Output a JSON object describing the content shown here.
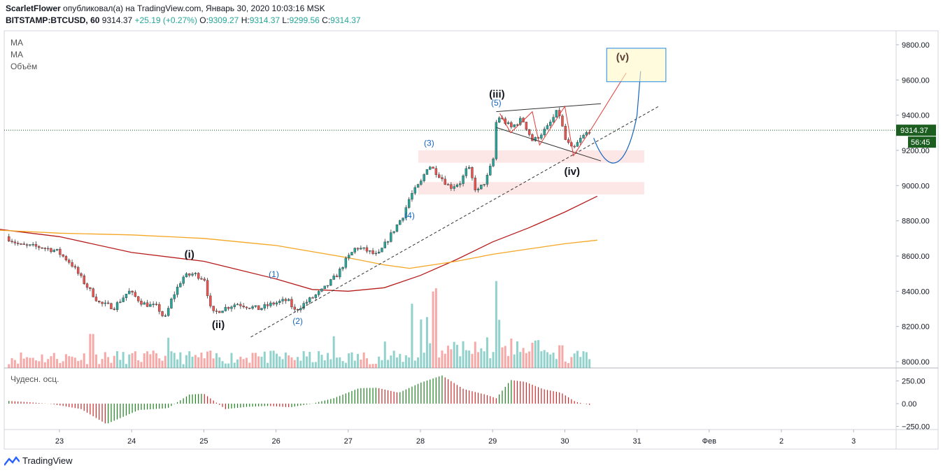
{
  "header": {
    "author": "ScarletFlower",
    "published": "опубликовал(а) на TradingView.com, Январь 30, 2020 10:03:16 MSK",
    "symbol": "BITSTAMP:BTCUSD, 60",
    "last": "9314.37",
    "change": "+25.19 (+0.27%)",
    "o_label": "O:",
    "o": "9309.27",
    "h_label": "H:",
    "h": "9314.37",
    "l_label": "L:",
    "l": "9299.56",
    "c_label": "C:",
    "c": "9314.37"
  },
  "legend": {
    "ma1": "MA",
    "ma2": "MA",
    "volume": "Объём"
  },
  "osc_legend": "Чудесн. осц.",
  "footer": {
    "brand": "TradingView"
  },
  "colors": {
    "up": "#26a69a",
    "down": "#ef5350",
    "ma_slow": "#b71c1c",
    "ma_fast": "#f5a623",
    "wave": "#1565c0",
    "price_line": "#1b5e20"
  },
  "chart_data": {
    "type": "candlestick",
    "interval": "60",
    "ylim": [
      7960,
      9880
    ],
    "y_ticks": [
      "9800.00",
      "9600.00",
      "9400.00",
      "9200.00",
      "9000.00",
      "8800.00",
      "8600.00",
      "8400.00",
      "8200.00",
      "8000.00"
    ],
    "x_labels": [
      "23",
      "24",
      "25",
      "26",
      "27",
      "28",
      "29",
      "30",
      "31",
      "Фев",
      "2",
      "3"
    ],
    "x_label_pos": [
      23,
      24,
      25,
      26,
      27,
      28,
      29,
      30,
      31,
      32,
      33,
      34
    ],
    "current_price": "9314.37",
    "countdown": "56:45",
    "price_path": [
      [
        22.3,
        8710
      ],
      [
        22.5,
        8660
      ],
      [
        22.8,
        8650
      ],
      [
        23.0,
        8630
      ],
      [
        23.2,
        8560
      ],
      [
        23.4,
        8440
      ],
      [
        23.6,
        8330
      ],
      [
        23.8,
        8310
      ],
      [
        24.0,
        8400
      ],
      [
        24.2,
        8330
      ],
      [
        24.4,
        8310
      ],
      [
        24.5,
        8240
      ],
      [
        24.6,
        8360
      ],
      [
        24.75,
        8480
      ],
      [
        24.9,
        8500
      ],
      [
        25.05,
        8470
      ],
      [
        25.15,
        8270
      ],
      [
        25.3,
        8300
      ],
      [
        25.5,
        8330
      ],
      [
        25.8,
        8300
      ],
      [
        26.0,
        8330
      ],
      [
        26.2,
        8350
      ],
      [
        26.3,
        8290
      ],
      [
        26.5,
        8350
      ],
      [
        26.7,
        8410
      ],
      [
        26.9,
        8500
      ],
      [
        27.0,
        8570
      ],
      [
        27.15,
        8650
      ],
      [
        27.3,
        8630
      ],
      [
        27.45,
        8600
      ],
      [
        27.6,
        8700
      ],
      [
        27.8,
        8830
      ],
      [
        27.9,
        8940
      ],
      [
        28.05,
        9020
      ],
      [
        28.15,
        9120
      ],
      [
        28.3,
        9060
      ],
      [
        28.45,
        8990
      ],
      [
        28.6,
        9020
      ],
      [
        28.7,
        9110
      ],
      [
        28.82,
        8960
      ],
      [
        28.95,
        9030
      ],
      [
        29.05,
        9150
      ],
      [
        29.1,
        9400
      ],
      [
        29.3,
        9330
      ],
      [
        29.45,
        9380
      ],
      [
        29.6,
        9250
      ],
      [
        29.8,
        9330
      ],
      [
        29.95,
        9430
      ],
      [
        30.05,
        9260
      ],
      [
        30.15,
        9200
      ],
      [
        30.25,
        9260
      ],
      [
        30.38,
        9314
      ]
    ],
    "ma_slow": [
      [
        22.0,
        8760
      ],
      [
        23.0,
        8710
      ],
      [
        24.0,
        8620
      ],
      [
        25.0,
        8570
      ],
      [
        26.0,
        8470
      ],
      [
        26.5,
        8410
      ],
      [
        27.0,
        8400
      ],
      [
        27.5,
        8420
      ],
      [
        28.0,
        8490
      ],
      [
        28.5,
        8580
      ],
      [
        29.0,
        8680
      ],
      [
        29.5,
        8760
      ],
      [
        30.0,
        8850
      ],
      [
        30.45,
        8940
      ]
    ],
    "ma_fast": [
      [
        22.0,
        8750
      ],
      [
        23.0,
        8730
      ],
      [
        24.0,
        8720
      ],
      [
        25.0,
        8700
      ],
      [
        26.0,
        8660
      ],
      [
        27.0,
        8590
      ],
      [
        27.5,
        8550
      ],
      [
        27.85,
        8530
      ],
      [
        28.5,
        8570
      ],
      [
        29.0,
        8610
      ],
      [
        29.5,
        8640
      ],
      [
        30.0,
        8670
      ],
      [
        30.45,
        8690
      ]
    ],
    "volume_spikes": [
      [
        23.45,
        0.45
      ],
      [
        24.5,
        0.4
      ],
      [
        25.7,
        0.2
      ],
      [
        26.8,
        0.42
      ],
      [
        27.5,
        0.35
      ],
      [
        27.9,
        0.85
      ],
      [
        28.0,
        0.55
      ],
      [
        28.1,
        0.65
      ],
      [
        28.2,
        0.9
      ],
      [
        28.5,
        0.25
      ],
      [
        29.05,
        1.0
      ],
      [
        29.1,
        0.6
      ],
      [
        29.6,
        0.25
      ],
      [
        29.95,
        0.3
      ]
    ],
    "oscillator": {
      "ylim": [
        -280,
        290
      ],
      "y_ticks": [
        "250.00",
        "0.00",
        "−250.00"
      ]
    },
    "annotations": {
      "waves_major": [
        "(i)",
        "(ii)",
        "(iii)",
        "(iv)",
        "(v)"
      ],
      "waves_minor": [
        "(1)",
        "(2)",
        "(3)",
        "(4)",
        "(5)"
      ]
    }
  }
}
